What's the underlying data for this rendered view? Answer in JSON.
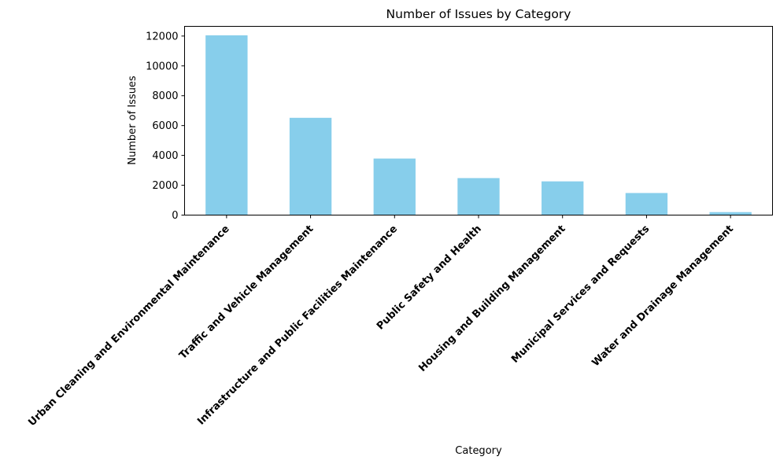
{
  "chart_data": {
    "type": "bar",
    "title": "Number of Issues by Category",
    "xlabel": "Category",
    "ylabel": "Number of Issues",
    "categories": [
      "Urban Cleaning and Environmental Maintenance",
      "Traffic and Vehicle Management",
      "Infrastructure and Public Facilities Maintenance",
      "Public Safety and Health",
      "Housing and Building Management",
      "Municipal Services and Requests",
      "Water and Drainage Management"
    ],
    "values": [
      12050,
      6520,
      3790,
      2480,
      2260,
      1480,
      200
    ],
    "ylim": [
      0,
      12650
    ],
    "yticks": [
      0,
      2000,
      4000,
      6000,
      8000,
      10000,
      12000
    ],
    "bar_color": "#87CEEB",
    "grid": false,
    "legend": false
  }
}
